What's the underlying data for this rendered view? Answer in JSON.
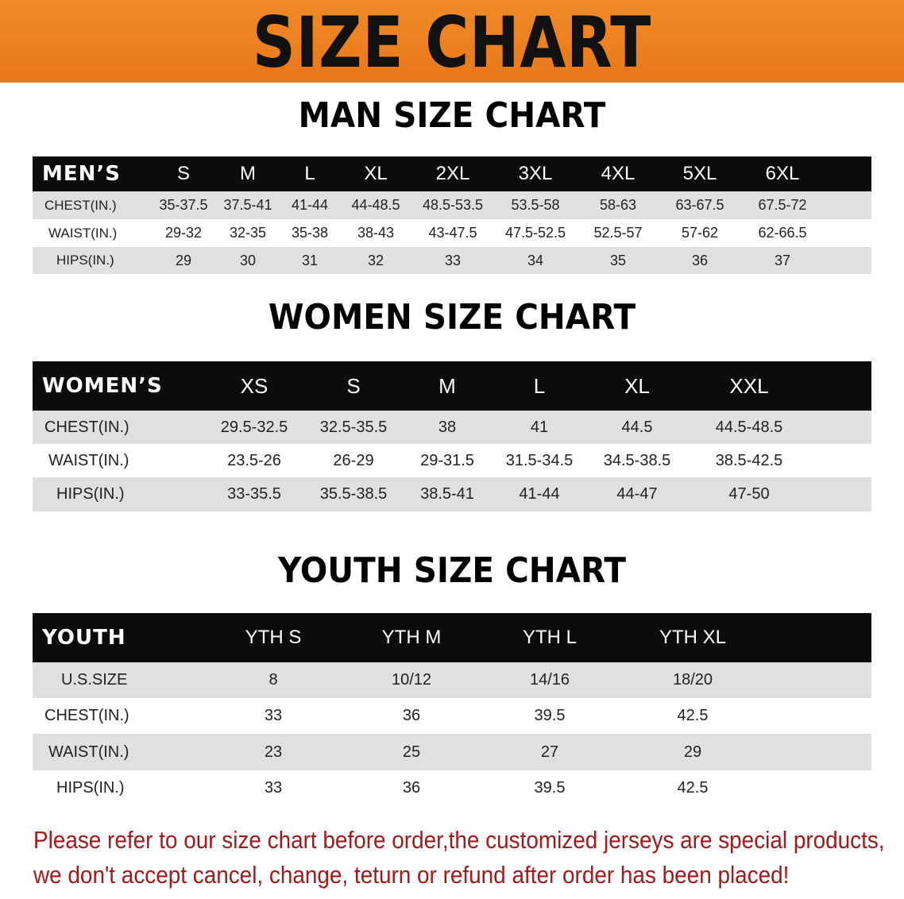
{
  "banner": {
    "title": "SIZE CHART",
    "color": "#ec7f1f"
  },
  "men": {
    "title": "MAN SIZE CHART",
    "header": "MEN’S",
    "sizes": [
      "S",
      "M",
      "L",
      "XL",
      "2XL",
      "3XL",
      "4XL",
      "5XL",
      "6XL"
    ],
    "rows": [
      {
        "label": "CHEST(IN.)",
        "values": [
          "35-37.5",
          "37.5-41",
          "41-44",
          "44-48.5",
          "48.5-53.5",
          "53.5-58",
          "58-63",
          "63-67.5",
          "67.5-72"
        ]
      },
      {
        "label": "WAIST(IN.)",
        "values": [
          "29-32",
          "32-35",
          "35-38",
          "38-43",
          "43-47.5",
          "47.5-52.5",
          "52.5-57",
          "57-62",
          "62-66.5"
        ]
      },
      {
        "label": "HIPS(IN.)",
        "values": [
          "29",
          "30",
          "31",
          "32",
          "33",
          "34",
          "35",
          "36",
          "37"
        ]
      }
    ]
  },
  "women": {
    "title": "WOMEN SIZE CHART",
    "header": "WOMEN’S",
    "sizes": [
      "XS",
      "S",
      "M",
      "L",
      "XL",
      "XXL"
    ],
    "rows": [
      {
        "label": "CHEST(IN.)",
        "values": [
          "29.5-32.5",
          "32.5-35.5",
          "38",
          "41",
          "44.5",
          "44.5-48.5"
        ]
      },
      {
        "label": "WAIST(IN.)",
        "values": [
          "23.5-26",
          "26-29",
          "29-31.5",
          "31.5-34.5",
          "34.5-38.5",
          "38.5-42.5"
        ]
      },
      {
        "label": "HIPS(IN.)",
        "values": [
          "33-35.5",
          "35.5-38.5",
          "38.5-41",
          "41-44",
          "44-47",
          "47-50"
        ]
      }
    ]
  },
  "youth": {
    "title": "YOUTH SIZE CHART",
    "header": "YOUTH",
    "sizes": [
      "YTH S",
      "YTH M",
      "YTH L",
      "YTH XL"
    ],
    "rows": [
      {
        "label": "U.S.SIZE",
        "values": [
          "8",
          "10/12",
          "14/16",
          "18/20"
        ]
      },
      {
        "label": "CHEST(IN.)",
        "values": [
          "33",
          "36",
          "39.5",
          "42.5"
        ]
      },
      {
        "label": "WAIST(IN.)",
        "values": [
          "23",
          "25",
          "27",
          "29"
        ]
      },
      {
        "label": "HIPS(IN.)",
        "values": [
          "33",
          "36",
          "39.5",
          "42.5"
        ]
      }
    ]
  },
  "notice": {
    "line1": "Please refer to our size chart before order,the customized jerseys are special products,",
    "line2": "we don't accept cancel, change, teturn or refund after order has been placed!",
    "color": "#a3191c"
  }
}
